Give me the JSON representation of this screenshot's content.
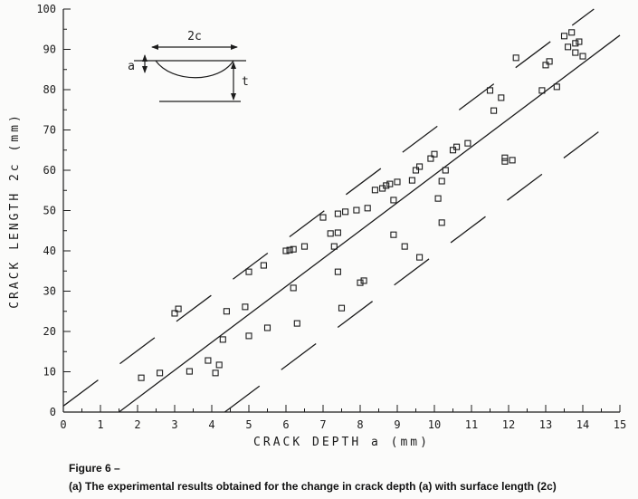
{
  "colors": {
    "ink": "#1c1c1c",
    "background": "#fbfbfa"
  },
  "figure": {
    "caption_line1": "Figure 6 –",
    "caption_line2": "(a) The experimental results obtained for the change in crack depth (a) with surface length (2c)"
  },
  "inset": {
    "label_2c": "2c",
    "label_a": "a",
    "label_t": "t"
  },
  "chart_data": {
    "type": "scatter",
    "title": "",
    "xlabel": "CRACK DEPTH a (mm)",
    "ylabel": "CRACK LENGTH 2c (mm)",
    "xlim": [
      0,
      15
    ],
    "ylim": [
      0,
      100
    ],
    "x_ticks": [
      0,
      1,
      2,
      3,
      4,
      5,
      6,
      7,
      8,
      9,
      10,
      11,
      12,
      13,
      14,
      15
    ],
    "y_ticks": [
      0,
      10,
      20,
      30,
      40,
      50,
      60,
      70,
      80,
      90,
      100
    ],
    "x_minor_step": 0.5,
    "y_minor_step": 5,
    "marker": "open-square",
    "grid": false,
    "legend": null,
    "points": [
      [
        2.1,
        8.5
      ],
      [
        2.6,
        9.7
      ],
      [
        3.0,
        24.5
      ],
      [
        3.1,
        25.6
      ],
      [
        3.4,
        10.1
      ],
      [
        3.9,
        12.8
      ],
      [
        4.1,
        9.7
      ],
      [
        4.2,
        11.7
      ],
      [
        4.3,
        18.0
      ],
      [
        4.4,
        25.0
      ],
      [
        4.9,
        26.1
      ],
      [
        5.0,
        18.9
      ],
      [
        5.0,
        34.8
      ],
      [
        5.4,
        36.4
      ],
      [
        5.5,
        20.9
      ],
      [
        6.0,
        40.0
      ],
      [
        6.1,
        40.2
      ],
      [
        6.2,
        40.4
      ],
      [
        6.2,
        30.8
      ],
      [
        6.3,
        22.0
      ],
      [
        6.5,
        41.1
      ],
      [
        7.0,
        48.3
      ],
      [
        7.2,
        44.3
      ],
      [
        7.3,
        41.1
      ],
      [
        7.4,
        44.5
      ],
      [
        7.4,
        49.2
      ],
      [
        7.4,
        34.8
      ],
      [
        7.5,
        25.8
      ],
      [
        7.6,
        49.7
      ],
      [
        7.9,
        50.1
      ],
      [
        8.0,
        32.1
      ],
      [
        8.1,
        32.6
      ],
      [
        8.2,
        50.6
      ],
      [
        8.4,
        55.1
      ],
      [
        8.6,
        55.5
      ],
      [
        8.7,
        56.2
      ],
      [
        8.8,
        56.6
      ],
      [
        8.9,
        52.6
      ],
      [
        8.9,
        44.0
      ],
      [
        9.0,
        57.1
      ],
      [
        9.2,
        41.1
      ],
      [
        9.4,
        57.5
      ],
      [
        9.5,
        60.0
      ],
      [
        9.6,
        60.9
      ],
      [
        9.6,
        38.4
      ],
      [
        9.9,
        62.9
      ],
      [
        10.0,
        64.0
      ],
      [
        10.1,
        53.0
      ],
      [
        10.2,
        47.0
      ],
      [
        10.2,
        57.3
      ],
      [
        10.3,
        60.0
      ],
      [
        10.5,
        65.0
      ],
      [
        10.6,
        65.8
      ],
      [
        10.9,
        66.7
      ],
      [
        11.5,
        79.8
      ],
      [
        11.6,
        74.8
      ],
      [
        11.8,
        78.0
      ],
      [
        11.9,
        62.2
      ],
      [
        11.9,
        63.1
      ],
      [
        12.1,
        62.5
      ],
      [
        12.2,
        87.9
      ],
      [
        12.9,
        79.8
      ],
      [
        13.0,
        86.1
      ],
      [
        13.1,
        87.0
      ],
      [
        13.3,
        80.7
      ],
      [
        13.5,
        93.3
      ],
      [
        13.6,
        90.6
      ],
      [
        13.7,
        94.2
      ],
      [
        13.8,
        91.5
      ],
      [
        13.8,
        89.2
      ],
      [
        13.9,
        91.9
      ],
      [
        14.0,
        88.3
      ]
    ],
    "trend_line": {
      "style": "solid",
      "points": [
        [
          1.5,
          0
        ],
        [
          15,
          93.5
        ]
      ]
    },
    "scatter_bands": [
      {
        "style": "long-dash",
        "points": [
          [
            0,
            1.5
          ],
          [
            14.3,
            100
          ]
        ]
      },
      {
        "style": "long-dash",
        "points": [
          [
            4.35,
            0
          ],
          [
            15,
            73.5
          ]
        ]
      }
    ]
  }
}
